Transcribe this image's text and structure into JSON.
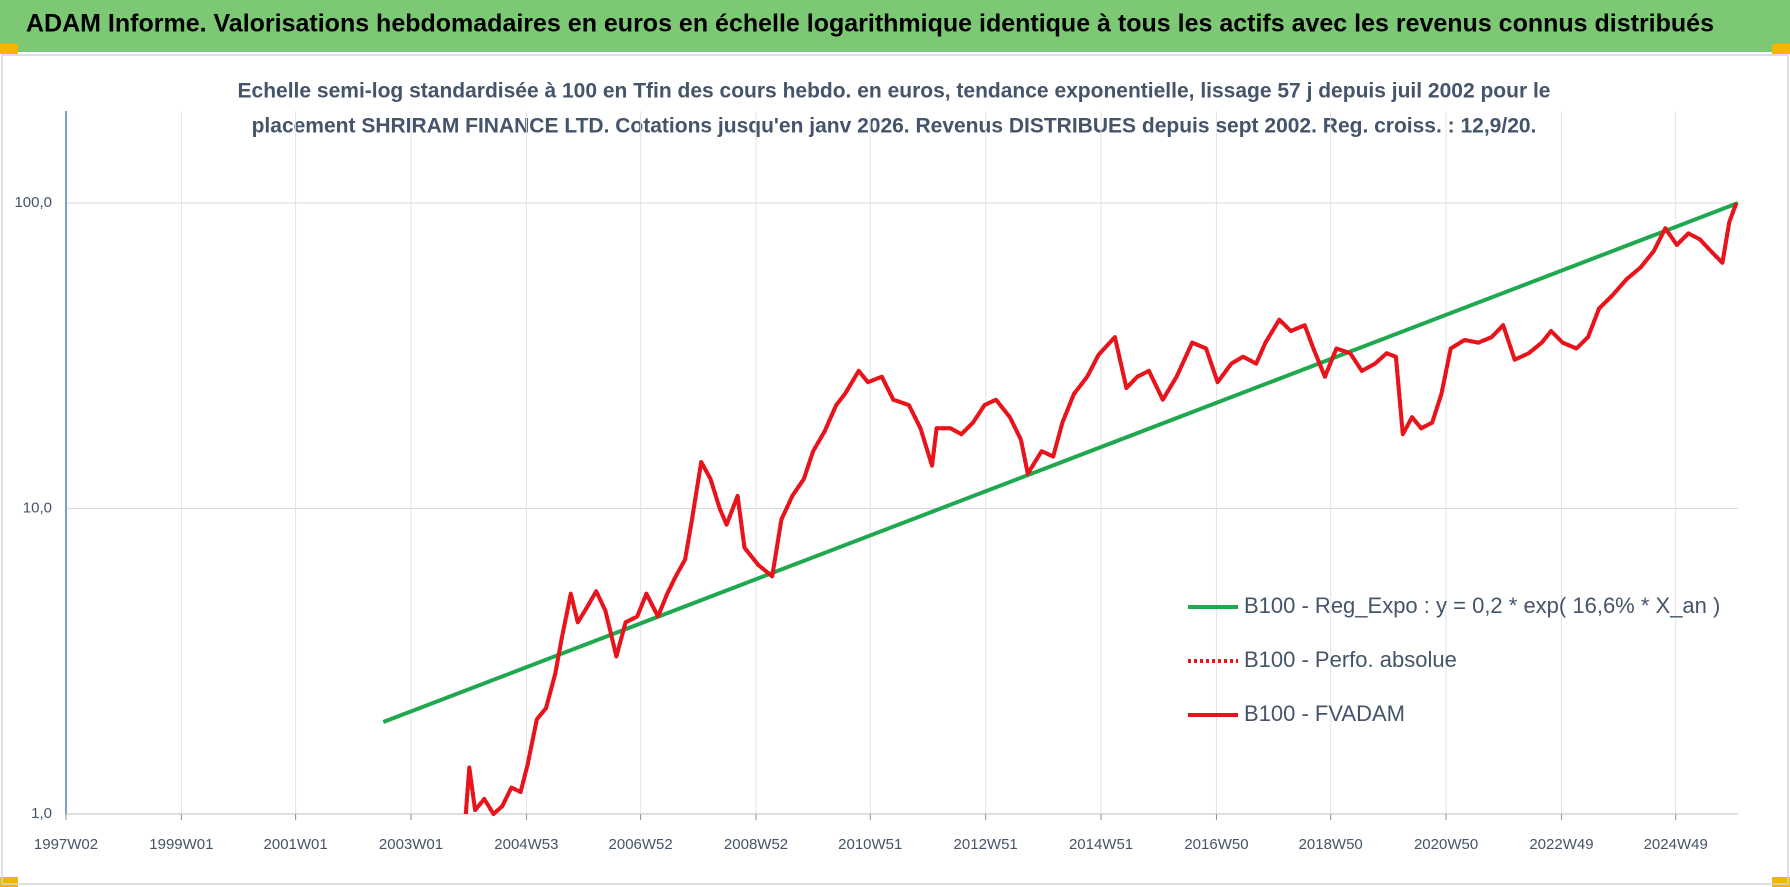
{
  "header": {
    "title": "ADAM Informe. Valorisations hebdomadaires en euros en échelle logarithmique identique à tous les actifs avec les revenus connus distribués"
  },
  "chart_data": {
    "type": "line",
    "title": [
      "Echelle semi-log standardisée à 100 en Tfin des cours hebdo. en euros, tendance exponentielle, lissage 57 j depuis juil 2002 pour le",
      "placement SHRIRAM FINANCE LTD. Cotations jusqu'en janv 2026. Revenus DISTRIBUES depuis sept 2002. Reg. croiss. : 12,9/20."
    ],
    "log_scale": "y",
    "grid": true,
    "legend_position": "right",
    "xlim": [
      1997.02,
      2026.0
    ],
    "xticks": [
      {
        "value": 1997.02,
        "label": "1997W02"
      },
      {
        "value": 1999.02,
        "label": "1999W01"
      },
      {
        "value": 2001.0,
        "label": "2001W01"
      },
      {
        "value": 2003.0,
        "label": "2003W01"
      },
      {
        "value": 2005.0,
        "label": "2004W53"
      },
      {
        "value": 2006.98,
        "label": "2006W52"
      },
      {
        "value": 2008.98,
        "label": "2008W52"
      },
      {
        "value": 2010.96,
        "label": "2010W51"
      },
      {
        "value": 2012.96,
        "label": "2012W51"
      },
      {
        "value": 2014.96,
        "label": "2014W51"
      },
      {
        "value": 2016.96,
        "label": "2016W50"
      },
      {
        "value": 2018.94,
        "label": "2018W50"
      },
      {
        "value": 2020.94,
        "label": "2020W50"
      },
      {
        "value": 2022.94,
        "label": "2022W49"
      },
      {
        "value": 2024.92,
        "label": "2024W49"
      }
    ],
    "ylim": [
      1,
      200
    ],
    "yticks": [
      {
        "value": 1,
        "label": "1,0"
      },
      {
        "value": 10,
        "label": "10,0"
      },
      {
        "value": 100,
        "label": "100,0"
      }
    ],
    "series": [
      {
        "name": "B100 - Reg_Expo : y = 0,2 * exp( 16,6% *  X_an )",
        "color": "#1fa84f",
        "style": "solid",
        "x": [
          2002.52,
          2026.0
        ],
        "values": [
          2.0,
          100
        ]
      },
      {
        "name": "B100 - Perfo. absolue",
        "color": "#e8141b",
        "style": "dotted",
        "x": [
          2003.95,
          2004.01,
          2004.11,
          2004.27,
          2004.43,
          2004.58,
          2004.74,
          2004.9,
          2005.02,
          2005.18,
          2005.34,
          2005.5,
          2005.61,
          2005.77,
          2005.89,
          2006.05,
          2006.21,
          2006.37,
          2006.56,
          2006.72,
          2006.92,
          2007.08,
          2007.28,
          2007.44,
          2007.59,
          2007.75,
          2007.87,
          2008.03,
          2008.19,
          2008.35,
          2008.47,
          2008.66,
          2008.78,
          2009.02,
          2009.26,
          2009.42,
          2009.61,
          2009.81,
          2009.97,
          2010.17,
          2010.37,
          2010.52,
          2010.76,
          2010.92,
          2011.16,
          2011.36,
          2011.63,
          2011.83,
          2012.03,
          2012.11,
          2012.35,
          2012.54,
          2012.74,
          2012.94,
          2013.14,
          2013.38,
          2013.57,
          2013.69,
          2013.93,
          2014.13,
          2014.29,
          2014.49,
          2014.72,
          2014.92,
          2015.2,
          2015.4,
          2015.59,
          2015.79,
          2016.03,
          2016.27,
          2016.54,
          2016.78,
          2016.98,
          2017.22,
          2017.42,
          2017.65,
          2017.81,
          2018.05,
          2018.25,
          2018.49,
          2018.64,
          2018.84,
          2019.04,
          2019.28,
          2019.48,
          2019.71,
          2019.91,
          2020.07,
          2020.19,
          2020.35,
          2020.51,
          2020.7,
          2020.86,
          2021.02,
          2021.26,
          2021.5,
          2021.73,
          2021.93,
          2022.13,
          2022.37,
          2022.6,
          2022.76,
          2022.96,
          2023.2,
          2023.4,
          2023.59,
          2023.83,
          2024.07,
          2024.31,
          2024.54,
          2024.74,
          2024.94,
          2025.14,
          2025.34,
          2025.53,
          2025.73,
          2025.85,
          2025.97
        ],
        "values": [
          1.0,
          1.42,
          1.03,
          1.12,
          1.0,
          1.06,
          1.22,
          1.18,
          1.45,
          2.04,
          2.22,
          2.88,
          3.74,
          5.26,
          4.24,
          4.75,
          5.36,
          4.63,
          3.28,
          4.24,
          4.43,
          5.26,
          4.43,
          5.26,
          6.0,
          6.81,
          9.2,
          14.2,
          12.5,
          10.0,
          8.85,
          11.0,
          7.44,
          6.53,
          6.0,
          9.2,
          11.0,
          12.5,
          15.4,
          17.9,
          21.8,
          23.7,
          28.2,
          25.9,
          27.0,
          22.7,
          21.8,
          18.3,
          13.8,
          18.3,
          18.3,
          17.5,
          19.1,
          21.8,
          22.7,
          19.9,
          16.8,
          13.0,
          15.4,
          14.8,
          19.1,
          23.7,
          27.0,
          31.9,
          36.4,
          24.8,
          27.0,
          28.2,
          22.7,
          27.0,
          34.9,
          33.4,
          25.9,
          29.8,
          31.4,
          29.8,
          34.9,
          41.5,
          38.1,
          39.8,
          33.4,
          27.0,
          33.4,
          32.2,
          28.2,
          29.8,
          32.2,
          31.4,
          17.5,
          19.9,
          18.3,
          19.1,
          23.7,
          33.4,
          35.6,
          34.9,
          36.4,
          39.8,
          30.7,
          32.2,
          34.9,
          38.1,
          34.9,
          33.4,
          36.4,
          45.1,
          50.0,
          56.3,
          61.5,
          69.6,
          82.7,
          72.9,
          79.5,
          76.0,
          69.6,
          63.7,
          86.6,
          100
        ]
      },
      {
        "name": "B100 - FVADAM",
        "color": "#e8141b",
        "style": "solid",
        "x": [
          2003.95,
          2004.01,
          2004.11,
          2004.27,
          2004.43,
          2004.58,
          2004.74,
          2004.9,
          2005.02,
          2005.18,
          2005.34,
          2005.5,
          2005.61,
          2005.77,
          2005.89,
          2006.05,
          2006.21,
          2006.37,
          2006.56,
          2006.72,
          2006.92,
          2007.08,
          2007.28,
          2007.44,
          2007.59,
          2007.75,
          2007.87,
          2008.03,
          2008.19,
          2008.35,
          2008.47,
          2008.66,
          2008.78,
          2009.02,
          2009.26,
          2009.42,
          2009.61,
          2009.81,
          2009.97,
          2010.17,
          2010.37,
          2010.52,
          2010.76,
          2010.92,
          2011.16,
          2011.36,
          2011.63,
          2011.83,
          2012.03,
          2012.11,
          2012.35,
          2012.54,
          2012.74,
          2012.94,
          2013.14,
          2013.38,
          2013.57,
          2013.69,
          2013.93,
          2014.13,
          2014.29,
          2014.49,
          2014.72,
          2014.92,
          2015.2,
          2015.4,
          2015.59,
          2015.79,
          2016.03,
          2016.27,
          2016.54,
          2016.78,
          2016.98,
          2017.22,
          2017.42,
          2017.65,
          2017.81,
          2018.05,
          2018.25,
          2018.49,
          2018.64,
          2018.84,
          2019.04,
          2019.28,
          2019.48,
          2019.71,
          2019.91,
          2020.07,
          2020.19,
          2020.35,
          2020.51,
          2020.7,
          2020.86,
          2021.02,
          2021.26,
          2021.5,
          2021.73,
          2021.93,
          2022.13,
          2022.37,
          2022.6,
          2022.76,
          2022.96,
          2023.2,
          2023.4,
          2023.59,
          2023.83,
          2024.07,
          2024.31,
          2024.54,
          2024.74,
          2024.94,
          2025.14,
          2025.34,
          2025.53,
          2025.73,
          2025.85,
          2025.97
        ],
        "values": [
          1.0,
          1.42,
          1.03,
          1.12,
          1.0,
          1.06,
          1.22,
          1.18,
          1.45,
          2.04,
          2.22,
          2.88,
          3.74,
          5.26,
          4.24,
          4.75,
          5.36,
          4.63,
          3.28,
          4.24,
          4.43,
          5.26,
          4.43,
          5.26,
          6.0,
          6.81,
          9.2,
          14.2,
          12.5,
          10.0,
          8.85,
          11.0,
          7.44,
          6.53,
          6.0,
          9.2,
          11.0,
          12.5,
          15.4,
          17.9,
          21.8,
          23.7,
          28.2,
          25.9,
          27.0,
          22.7,
          21.8,
          18.3,
          13.8,
          18.3,
          18.3,
          17.5,
          19.1,
          21.8,
          22.7,
          19.9,
          16.8,
          13.0,
          15.4,
          14.8,
          19.1,
          23.7,
          27.0,
          31.9,
          36.4,
          24.8,
          27.0,
          28.2,
          22.7,
          27.0,
          34.9,
          33.4,
          25.9,
          29.8,
          31.4,
          29.8,
          34.9,
          41.5,
          38.1,
          39.8,
          33.4,
          27.0,
          33.4,
          32.2,
          28.2,
          29.8,
          32.2,
          31.4,
          17.5,
          19.9,
          18.3,
          19.1,
          23.7,
          33.4,
          35.6,
          34.9,
          36.4,
          39.8,
          30.7,
          32.2,
          34.9,
          38.1,
          34.9,
          33.4,
          36.4,
          45.1,
          50.0,
          56.3,
          61.5,
          69.6,
          82.7,
          72.9,
          79.5,
          76.0,
          69.6,
          63.7,
          86.6,
          100
        ]
      }
    ]
  }
}
